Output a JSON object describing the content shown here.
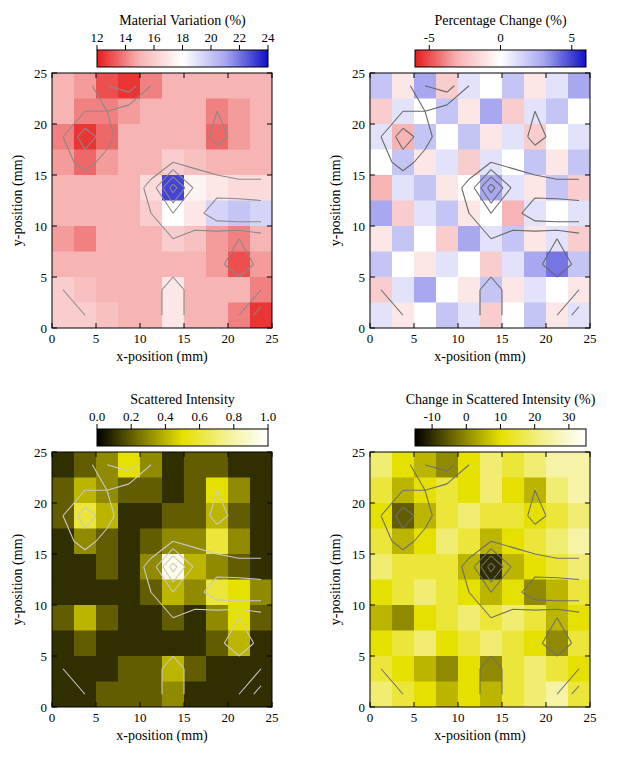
{
  "chart_data": [
    {
      "type": "heatmap",
      "title": "Material Variation (%)",
      "x_label": "x-position (mm)",
      "y_label": "y-position (mm)",
      "xlim": [
        0,
        25
      ],
      "ylim": [
        0,
        25
      ],
      "xticks": [
        0,
        5,
        10,
        15,
        20,
        25
      ],
      "yticks": [
        0,
        5,
        10,
        15,
        20,
        25
      ],
      "x": [
        1.25,
        3.75,
        6.25,
        8.75,
        11.25,
        13.75,
        16.25,
        18.75,
        21.25,
        23.75
      ],
      "y": [
        23.75,
        21.25,
        18.75,
        16.25,
        13.75,
        11.25,
        8.75,
        6.25,
        3.75,
        1.25
      ],
      "z": [
        [
          15,
          14.5,
          13,
          12.5,
          14,
          15,
          15,
          15,
          15,
          15
        ],
        [
          15,
          14,
          14,
          14.5,
          15,
          15,
          15,
          14,
          14.5,
          15
        ],
        [
          14,
          12.5,
          13.5,
          15,
          15,
          15,
          15,
          13.5,
          14.5,
          15
        ],
        [
          14.5,
          13.5,
          14.5,
          15,
          15,
          16,
          15.5,
          15,
          15,
          15
        ],
        [
          15,
          15,
          15,
          15,
          16.5,
          23,
          17.5,
          17,
          16.5,
          16.5
        ],
        [
          15,
          15,
          15,
          15,
          16,
          18,
          17,
          19.5,
          20,
          19.5
        ],
        [
          14.5,
          14,
          15,
          15,
          15,
          16,
          15.5,
          14.5,
          14,
          15
        ],
        [
          15,
          15,
          15,
          15,
          15,
          15,
          15,
          14.5,
          13,
          14.5
        ],
        [
          16,
          15.5,
          15,
          15,
          15,
          17,
          15,
          15,
          15,
          14
        ],
        [
          16,
          16,
          15.5,
          15,
          15,
          17,
          15,
          15,
          14,
          12.5
        ]
      ],
      "colorbar": {
        "lim": [
          12,
          24
        ],
        "ticks": [
          12,
          14,
          16,
          18,
          20,
          22,
          24
        ]
      },
      "contour_levels": [
        13,
        14,
        16,
        18,
        20,
        22
      ]
    },
    {
      "type": "heatmap",
      "title": "Percentage Change (%)",
      "x_label": "x-position (mm)",
      "y_label": "y-position (mm)",
      "xlim": [
        0,
        25
      ],
      "ylim": [
        0,
        25
      ],
      "xticks": [
        0,
        5,
        10,
        15,
        20,
        25
      ],
      "yticks": [
        0,
        5,
        10,
        15,
        20,
        25
      ],
      "x": [
        1.25,
        3.75,
        6.25,
        8.75,
        11.25,
        13.75,
        16.25,
        18.75,
        21.25,
        23.75
      ],
      "y": [
        23.75,
        21.25,
        18.75,
        16.25,
        13.75,
        11.25,
        8.75,
        6.25,
        3.75,
        1.25
      ],
      "z": [
        [
          2,
          -1,
          3,
          -2,
          1,
          0,
          2,
          -1,
          1,
          3
        ],
        [
          -2,
          1,
          0,
          2,
          -1,
          3,
          -2,
          1,
          2,
          0
        ],
        [
          1,
          -3,
          2,
          0,
          2,
          -1,
          1,
          -2,
          0,
          1
        ],
        [
          0,
          2,
          -1,
          1,
          -2,
          1,
          0,
          2,
          -1,
          2
        ],
        [
          -3,
          1,
          2,
          -1,
          0,
          3,
          1,
          -1,
          2,
          -2
        ],
        [
          3,
          -2,
          1,
          2,
          -1,
          0,
          -3,
          1,
          0,
          1
        ],
        [
          -1,
          2,
          0,
          -2,
          3,
          1,
          2,
          -1,
          1,
          -2
        ],
        [
          2,
          0,
          -1,
          1,
          0,
          -2,
          1,
          3,
          4,
          2
        ],
        [
          -2,
          1,
          3,
          0,
          -1,
          2,
          -1,
          1,
          0,
          -1
        ],
        [
          1,
          -1,
          0,
          2,
          1,
          -2,
          0,
          2,
          -1,
          1
        ]
      ],
      "colorbar": {
        "lim": [
          -6,
          6
        ],
        "ticks": [
          -5,
          0,
          5
        ]
      }
    },
    {
      "type": "heatmap",
      "title": "Scattered Intensity",
      "x_label": "x-position (mm)",
      "y_label": "y-position (mm)",
      "xlim": [
        0,
        25
      ],
      "ylim": [
        0,
        25
      ],
      "xticks": [
        0,
        5,
        10,
        15,
        20,
        25
      ],
      "yticks": [
        0,
        5,
        10,
        15,
        20,
        25
      ],
      "x": [
        1.25,
        3.75,
        6.25,
        8.75,
        11.25,
        13.75,
        16.25,
        18.75,
        21.25,
        23.75
      ],
      "y": [
        23.75,
        21.25,
        18.75,
        16.25,
        13.75,
        11.25,
        8.75,
        6.25,
        3.75,
        1.25
      ],
      "z": [
        [
          0.1,
          0.2,
          0.3,
          0.5,
          0.3,
          0.1,
          0.2,
          0.2,
          0.1,
          0.1
        ],
        [
          0.2,
          0.4,
          0.3,
          0.2,
          0.2,
          0.1,
          0.2,
          0.5,
          0.3,
          0.1
        ],
        [
          0.2,
          0.6,
          0.4,
          0.1,
          0.1,
          0.2,
          0.2,
          0.4,
          0.2,
          0.1
        ],
        [
          0.1,
          0.3,
          0.2,
          0.1,
          0.2,
          0.3,
          0.3,
          0.6,
          0.3,
          0.1
        ],
        [
          0.1,
          0.1,
          0.2,
          0.1,
          0.3,
          0.95,
          0.4,
          0.3,
          0.2,
          0.1
        ],
        [
          0.1,
          0.1,
          0.1,
          0.1,
          0.2,
          0.4,
          0.3,
          0.6,
          0.5,
          0.3
        ],
        [
          0.2,
          0.4,
          0.2,
          0.1,
          0.1,
          0.2,
          0.1,
          0.3,
          0.5,
          0.2
        ],
        [
          0.1,
          0.2,
          0.1,
          0.1,
          0.1,
          0.1,
          0.1,
          0.2,
          0.4,
          0.1
        ],
        [
          0.1,
          0.1,
          0.1,
          0.2,
          0.2,
          0.4,
          0.2,
          0.1,
          0.1,
          0.1
        ],
        [
          0.1,
          0.1,
          0.2,
          0.2,
          0.2,
          0.3,
          0.1,
          0.1,
          0.1,
          0.1
        ]
      ],
      "colorbar": {
        "lim": [
          0,
          1
        ],
        "ticks": [
          {
            "value": 0,
            "label": "0.0"
          },
          {
            "value": 0.2,
            "label": "0.2"
          },
          {
            "value": 0.4,
            "label": "0.4"
          },
          {
            "value": 0.6,
            "label": "0.6"
          },
          {
            "value": 0.8,
            "label": "0.8"
          },
          {
            "value": 1,
            "label": "1.0"
          }
        ]
      }
    },
    {
      "type": "heatmap",
      "title": "Change in Scattered Intensity (%)",
      "x_label": "x-position (mm)",
      "y_label": "y-position (mm)",
      "xlim": [
        0,
        25
      ],
      "ylim": [
        0,
        25
      ],
      "xticks": [
        0,
        5,
        10,
        15,
        20,
        25
      ],
      "yticks": [
        0,
        5,
        10,
        15,
        20,
        25
      ],
      "x": [
        1.25,
        3.75,
        6.25,
        8.75,
        11.25,
        13.75,
        16.25,
        18.75,
        21.25,
        23.75
      ],
      "y": [
        23.75,
        21.25,
        18.75,
        16.25,
        13.75,
        11.25,
        8.75,
        6.25,
        3.75,
        1.25
      ],
      "z": [
        [
          20,
          10,
          5,
          0,
          10,
          20,
          15,
          20,
          25,
          25
        ],
        [
          15,
          5,
          10,
          15,
          10,
          20,
          10,
          5,
          20,
          25
        ],
        [
          10,
          -5,
          5,
          15,
          20,
          15,
          15,
          10,
          15,
          20
        ],
        [
          15,
          5,
          10,
          20,
          15,
          5,
          10,
          15,
          20,
          25
        ],
        [
          20,
          15,
          15,
          15,
          5,
          -10,
          5,
          10,
          15,
          20
        ],
        [
          10,
          15,
          20,
          15,
          10,
          5,
          10,
          0,
          5,
          15
        ],
        [
          5,
          0,
          10,
          15,
          20,
          15,
          20,
          15,
          5,
          10
        ],
        [
          10,
          15,
          20,
          10,
          15,
          20,
          15,
          10,
          0,
          15
        ],
        [
          15,
          10,
          5,
          0,
          10,
          0,
          15,
          20,
          15,
          10
        ],
        [
          20,
          15,
          10,
          5,
          10,
          5,
          15,
          20,
          25,
          15
        ]
      ],
      "colorbar": {
        "lim": [
          -15,
          35
        ],
        "ticks": [
          -10,
          0,
          10,
          20,
          30
        ]
      }
    }
  ]
}
